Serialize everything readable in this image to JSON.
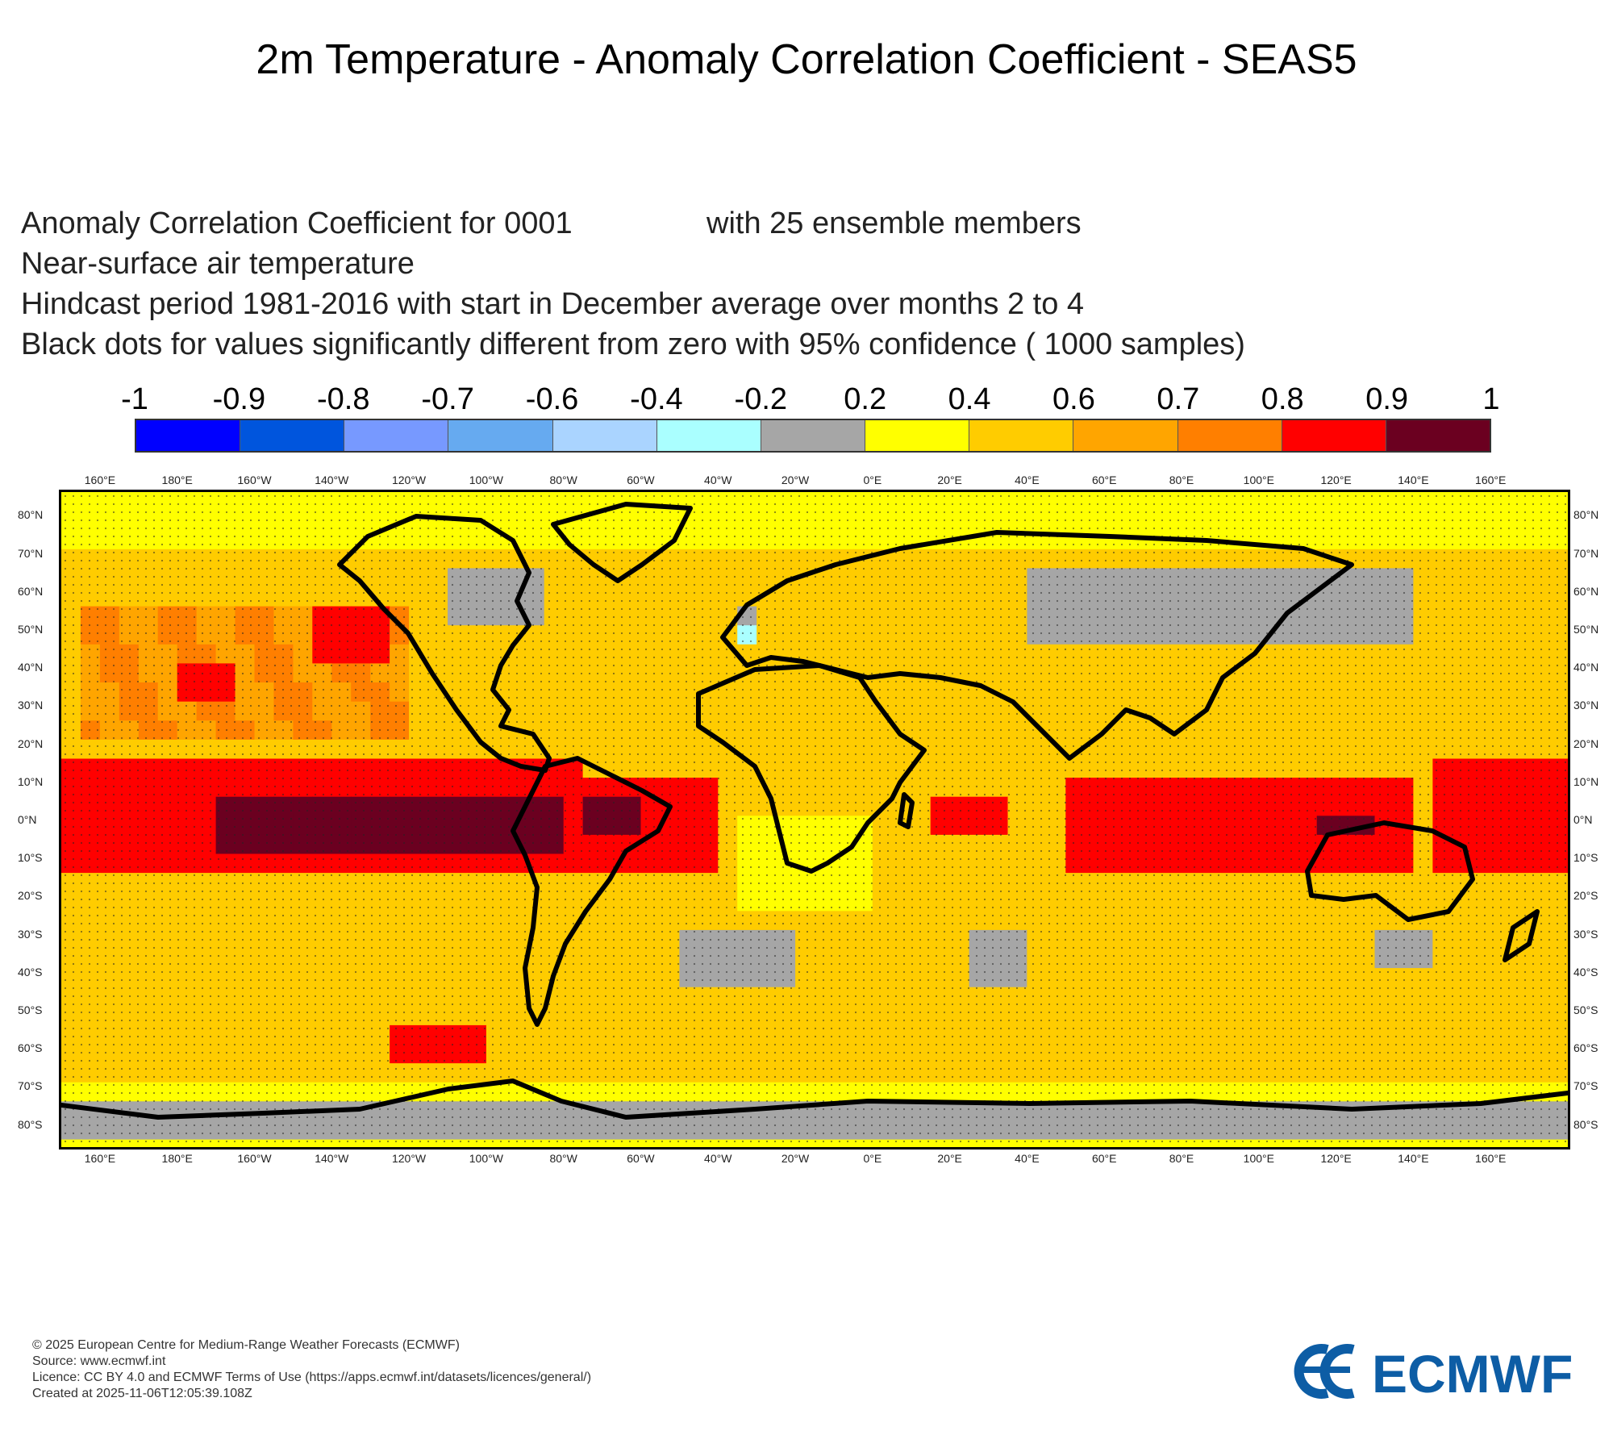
{
  "title": "2m Temperature - Anomaly Correlation Coefficient - SEAS5",
  "subtitle": {
    "line1": "Anomaly Correlation Coefficient for 0001",
    "line1_right": "with 25 ensemble members",
    "line2": "Near-surface air temperature",
    "line3": "Hindcast period 1981-2016 with start in December average over months  2 to  4",
    "line4": "Black dots for values significantly different from zero with 95% confidence ( 1000 samples)"
  },
  "colorbar": {
    "labels": [
      "-1",
      "-0.9",
      "-0.8",
      "-0.7",
      "-0.6",
      "-0.4",
      "-0.2",
      "0.2",
      "0.4",
      "0.6",
      "0.7",
      "0.8",
      "0.9",
      "1"
    ],
    "colors": [
      "#0000ff",
      "#0055dd",
      "#7799ff",
      "#66aaf0",
      "#aad4ff",
      "#aaffff",
      "#a6a6a6",
      "#ffff00",
      "#ffcc00",
      "#ffa500",
      "#ff7f00",
      "#ff0000",
      "#6b0020"
    ]
  },
  "map": {
    "lon_labels": [
      "160°E",
      "180°E",
      "160°W",
      "140°W",
      "120°W",
      "100°W",
      "80°W",
      "60°W",
      "40°W",
      "20°W",
      "0°E",
      "20°E",
      "40°E",
      "60°E",
      "80°E",
      "100°E",
      "120°E",
      "140°E",
      "160°E"
    ],
    "lat_labels": [
      "80°N",
      "70°N",
      "60°N",
      "50°N",
      "40°N",
      "30°N",
      "20°N",
      "10°N",
      "0°N",
      "10°S",
      "20°S",
      "30°S",
      "40°S",
      "50°S",
      "60°S",
      "70°S",
      "80°S"
    ],
    "lon_range": [
      150,
      540
    ],
    "lat_range": [
      -86,
      86
    ],
    "regions": [
      {
        "name": "north-pacific-orange",
        "lon": [
          155,
          240
        ],
        "lat": [
          20,
          55
        ],
        "value": 0.7
      },
      {
        "name": "north-pacific-red",
        "lon": [
          180,
          195
        ],
        "lat": [
          30,
          40
        ],
        "value": 0.8
      },
      {
        "name": "gulf-of-alaska-red",
        "lon": [
          215,
          235
        ],
        "lat": [
          40,
          55
        ],
        "value": 0.8
      },
      {
        "name": "tropical-pacific-red",
        "lon": [
          150,
          285
        ],
        "lat": [
          -15,
          15
        ],
        "value": 0.8
      },
      {
        "name": "nino-core",
        "lon": [
          190,
          280
        ],
        "lat": [
          -10,
          7
        ],
        "value": 0.9
      },
      {
        "name": "amazon-red",
        "lon": [
          280,
          320
        ],
        "lat": [
          -15,
          10
        ],
        "value": 0.8
      },
      {
        "name": "amazon-core",
        "lon": [
          285,
          300
        ],
        "lat": [
          -5,
          5
        ],
        "value": 0.9
      },
      {
        "name": "africa-red",
        "lon": [
          375,
          395
        ],
        "lat": [
          -5,
          5
        ],
        "value": 0.8
      },
      {
        "name": "indian-ocean-red",
        "lon": [
          410,
          500
        ],
        "lat": [
          -15,
          10
        ],
        "value": 0.8
      },
      {
        "name": "maritime-continent-core",
        "lon": [
          473,
          490
        ],
        "lat": [
          -5,
          3
        ],
        "value": 0.9
      },
      {
        "name": "west-pacific-red",
        "lon": [
          505,
          540
        ],
        "lat": [
          -15,
          15
        ],
        "value": 0.8
      },
      {
        "name": "southern-ocean-red",
        "lon": [
          237,
          258
        ],
        "lat": [
          -65,
          -55
        ],
        "value": 0.8
      },
      {
        "name": "siberia-grey",
        "lon": [
          400,
          500
        ],
        "lat": [
          45,
          65
        ],
        "value": 0.0
      },
      {
        "name": "canada-grey",
        "lon": [
          250,
          275
        ],
        "lat": [
          50,
          65
        ],
        "value": 0.0
      },
      {
        "name": "north-atlantic-grey",
        "lon": [
          324,
          330
        ],
        "lat": [
          45,
          55
        ],
        "value": 0.0
      },
      {
        "name": "north-atlantic-cyan",
        "lon": [
          325,
          331
        ],
        "lat": [
          48,
          52
        ],
        "value": -0.3
      },
      {
        "name": "south-atlantic-grey",
        "lon": [
          310,
          340
        ],
        "lat": [
          -45,
          -30
        ],
        "value": 0.0
      },
      {
        "name": "south-indian-grey",
        "lon": [
          383,
          400
        ],
        "lat": [
          -42,
          -30
        ],
        "value": 0.0
      },
      {
        "name": "australia-grey",
        "lon": [
          490,
          505
        ],
        "lat": [
          -40,
          -28
        ],
        "value": 0.0
      },
      {
        "name": "antarctica-grey",
        "lon": [
          150,
          540
        ],
        "lat": [
          -86,
          -74
        ],
        "value": 0.0
      },
      {
        "name": "arctic-yellow",
        "lon": [
          150,
          540
        ],
        "lat": [
          70,
          86
        ],
        "value": 0.3
      },
      {
        "name": "tropical-atlantic-yellow",
        "lon": [
          325,
          360
        ],
        "lat": [
          -25,
          0
        ],
        "value": 0.3
      }
    ]
  },
  "footer": {
    "line1": "© 2025 European Centre for Medium-Range Weather Forecasts (ECMWF)",
    "line2": "Source: www.ecmwf.int",
    "line3": "Licence: CC BY 4.0 and ECMWF Terms of Use (https://apps.ecmwf.int/datasets/licences/general/)",
    "line4": "Created at 2025-11-06T12:05:39.108Z",
    "logo_text": "ECMWF",
    "logo_color": "#0d5da5"
  }
}
